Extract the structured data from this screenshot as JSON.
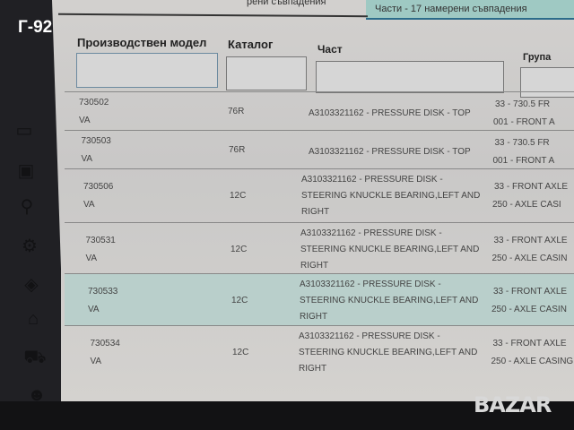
{
  "badge": "Г-92",
  "tabs": [
    {
      "label": "рени съвпадения"
    },
    {
      "label": "Части - 17 намерени съвпадения",
      "active": true
    }
  ],
  "filters": {
    "model_label": "Производствен модел",
    "catalog_label": "Каталог",
    "part_label": "Част",
    "group_label": "Група",
    "model_value": "",
    "catalog_value": "",
    "part_value": "",
    "group_value": ""
  },
  "rows": [
    {
      "model": "730502",
      "variant": "VA",
      "catalog": "76R",
      "part": [
        "A3103321162 - PRESSURE DISK - TOP",
        "",
        ""
      ],
      "group": [
        "33 - 730.5 FR",
        "001 - FRONT A"
      ]
    },
    {
      "model": "730503",
      "variant": "VA",
      "catalog": "76R",
      "part": [
        "A3103321162 - PRESSURE DISK - TOP",
        "",
        ""
      ],
      "group": [
        "33 - 730.5 FR",
        "001 - FRONT A"
      ]
    },
    {
      "model": "730506",
      "variant": "VA",
      "catalog": "12C",
      "part": [
        "A3103321162 - PRESSURE DISK -",
        "STEERING KNUCKLE BEARING,LEFT AND",
        "RIGHT"
      ],
      "group": [
        "33 - FRONT AXLE",
        "250 - AXLE CASI"
      ]
    },
    {
      "model": "730531",
      "variant": "VA",
      "catalog": "12C",
      "part": [
        "A3103321162 - PRESSURE DISK -",
        "STEERING KNUCKLE BEARING,LEFT AND",
        "RIGHT"
      ],
      "group": [
        "33 - FRONT AXLE",
        "250 - AXLE CASIN"
      ]
    },
    {
      "model": "730533",
      "variant": "VA",
      "catalog": "12C",
      "part": [
        "A3103321162 - PRESSURE DISK -",
        "STEERING KNUCKLE BEARING,LEFT AND",
        "RIGHT"
      ],
      "group": [
        "33 - FRONT AXLE",
        "250 - AXLE CASIN"
      ],
      "selected": true
    },
    {
      "model": "730534",
      "variant": "VA",
      "catalog": "12C",
      "part": [
        "A3103321162 - PRESSURE DISK -",
        "STEERING KNUCKLE BEARING,LEFT AND",
        "RIGHT"
      ],
      "group": [
        "33 - FRONT AXLE",
        "250 - AXLE CASING,"
      ]
    }
  ],
  "sidebar_icons": [
    "window-icon",
    "archive-icon",
    "search-icon",
    "tools-icon",
    "paint-icon",
    "home-tools-icon",
    "truck-icon",
    "users-icon",
    "settings-icon"
  ],
  "watermark": "BAZAR",
  "colors": {
    "active_tab": "#9fc9c3",
    "selected_row": "#b9cfcb",
    "sidebar": "#202024"
  }
}
